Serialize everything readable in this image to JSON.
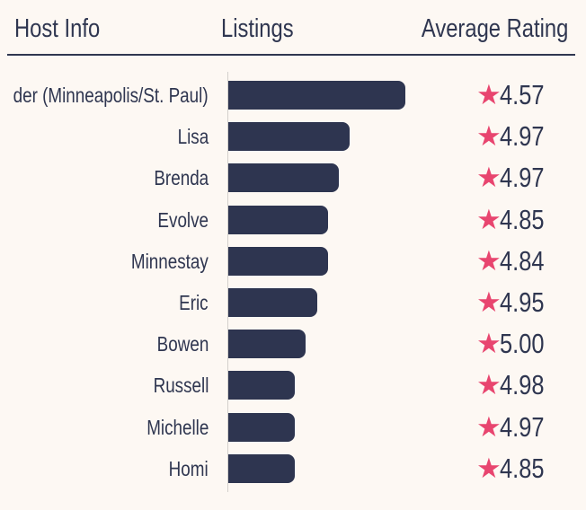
{
  "header": {
    "host_col": "Host Info",
    "listings_col": "Listings",
    "rating_col": "Average Rating"
  },
  "colors": {
    "bar": "#2e3550",
    "star": "#e8456f",
    "text": "#2f3650",
    "background": "#fdf8f3"
  },
  "icons": {
    "rating": "star-icon",
    "star_glyph": "★"
  },
  "chart_data": {
    "type": "bar",
    "orientation": "horizontal",
    "title": "",
    "xlabel": "Listings",
    "ylabel": "Host Info",
    "categories": [
      "der (Minneapolis/St. Paul)",
      "Lisa",
      "Brenda",
      "Evolve",
      "Minnestay",
      "Eric",
      "Bowen",
      "Russell",
      "Michelle",
      "Homi"
    ],
    "values": [
      16,
      11,
      10,
      9,
      9,
      8,
      7,
      6,
      6,
      6
    ],
    "ratings": [
      "4.57",
      "4.97",
      "4.97",
      "4.85",
      "4.84",
      "4.95",
      "5.00",
      "4.98",
      "4.97",
      "4.85"
    ],
    "xlim": [
      0,
      16
    ],
    "grid": false,
    "legend": "none"
  }
}
